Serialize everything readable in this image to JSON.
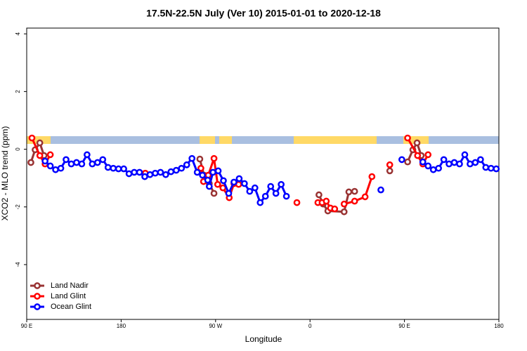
{
  "chart_data": {
    "type": "line",
    "title": "17.5N-22.5N July (Ver 10)   2015-01-01 to 2020-12-18",
    "x_label": "Longitude",
    "y_label": "XCO2 - MLO trend (ppm)",
    "xlim": [
      90,
      540
    ],
    "ylim": [
      -5.9,
      4.2
    ],
    "xticks": [
      {
        "value": 90,
        "label": "90 E"
      },
      {
        "value": 180,
        "label": "180"
      },
      {
        "value": 270,
        "label": "90 W"
      },
      {
        "value": 360,
        "label": "0"
      },
      {
        "value": 450,
        "label": "90 E"
      },
      {
        "value": 540,
        "label": "180"
      }
    ],
    "yticks": [
      -4,
      -2,
      0,
      2,
      4
    ],
    "legend": "bottom-left",
    "series": [
      {
        "name": "Land Nadir",
        "color": "#993333",
        "x": [
          94,
          98,
          102.5,
          106.5,
          180,
          255,
          259,
          264,
          268.5,
          320,
          368.5,
          372.5,
          377,
          392.5,
          397,
          402.5,
          420,
          436,
          440,
          453,
          458,
          462,
          466
        ],
        "values": [
          -0.46,
          -0.02,
          0.22,
          -0.22,
          null,
          -0.34,
          -0.9,
          -1.19,
          -1.53,
          null,
          -1.58,
          -1.9,
          -2.14,
          -2.17,
          -1.48,
          -1.46,
          null,
          -0.75,
          null,
          -0.44,
          -0.02,
          0.22,
          -0.22
        ]
      },
      {
        "name": "Land Glint",
        "color": "#ff0000",
        "x": [
          95,
          102.5,
          107.5,
          112.5,
          150,
          203,
          230,
          256,
          258.5,
          263,
          268.5,
          272,
          277,
          283,
          287.5,
          292,
          320,
          347.5,
          360,
          367.5,
          371.5,
          375.5,
          379.5,
          383.5,
          388,
          392.5,
          402.5,
          412.5,
          419,
          428,
          436,
          445,
          453,
          462.5,
          467.5,
          472.5
        ],
        "values": [
          0.39,
          -0.22,
          -0.51,
          -0.19,
          null,
          -0.83,
          null,
          -0.66,
          -1.12,
          -0.9,
          -0.32,
          -1.22,
          -1.34,
          -1.68,
          -1.19,
          -1.22,
          null,
          -1.85,
          null,
          -1.85,
          -1.85,
          -1.8,
          -2.04,
          -2.07,
          null,
          -1.9,
          -1.8,
          -1.65,
          -0.95,
          null,
          -0.54,
          null,
          0.39,
          -0.22,
          -0.51,
          -0.19
        ]
      },
      {
        "name": "Ocean Glint",
        "color": "#0000ff",
        "x": [
          107.5,
          112.5,
          117.5,
          122.5,
          127.5,
          132.5,
          137.5,
          142.5,
          147.5,
          152.5,
          157.5,
          162.5,
          167.5,
          172.5,
          177.5,
          182.5,
          187.5,
          192.5,
          197.5,
          202.5,
          207.5,
          212.5,
          217.5,
          222.5,
          227.5,
          232.5,
          237.5,
          242.5,
          247.5,
          252.5,
          257.5,
          262.5,
          264,
          267.5,
          272.5,
          277.5,
          282.5,
          287.5,
          292.5,
          297.5,
          302.5,
          307.5,
          312.5,
          317.5,
          322.5,
          327.5,
          332.5,
          337.5,
          380,
          427.5,
          437,
          447.5,
          457,
          467.5,
          472.5,
          477.5,
          482.5,
          487.5,
          492.5,
          497.5,
          502.5,
          507.5,
          512.5,
          517.5,
          522.5,
          527.5,
          532.5,
          537.5
        ],
        "values": [
          -0.41,
          -0.58,
          -0.71,
          -0.66,
          -0.36,
          -0.51,
          -0.46,
          -0.51,
          -0.19,
          -0.51,
          -0.46,
          -0.36,
          -0.63,
          -0.66,
          -0.68,
          -0.68,
          -0.85,
          -0.8,
          -0.8,
          -0.95,
          -0.88,
          -0.83,
          -0.8,
          -0.88,
          -0.78,
          -0.73,
          -0.66,
          -0.54,
          -0.32,
          -0.8,
          -0.9,
          -1.07,
          -1.29,
          -0.8,
          -0.75,
          -1.09,
          -1.53,
          -1.14,
          -1.02,
          -1.19,
          -1.46,
          -1.34,
          -1.85,
          -1.63,
          -1.29,
          -1.53,
          -1.22,
          -1.63,
          null,
          -1.41,
          null,
          -0.36,
          null,
          -0.44,
          -0.58,
          -0.71,
          -0.66,
          -0.36,
          -0.51,
          -0.46,
          -0.51,
          -0.19,
          -0.51,
          -0.46,
          -0.36,
          -0.63,
          -0.66,
          -0.68
        ]
      }
    ]
  }
}
